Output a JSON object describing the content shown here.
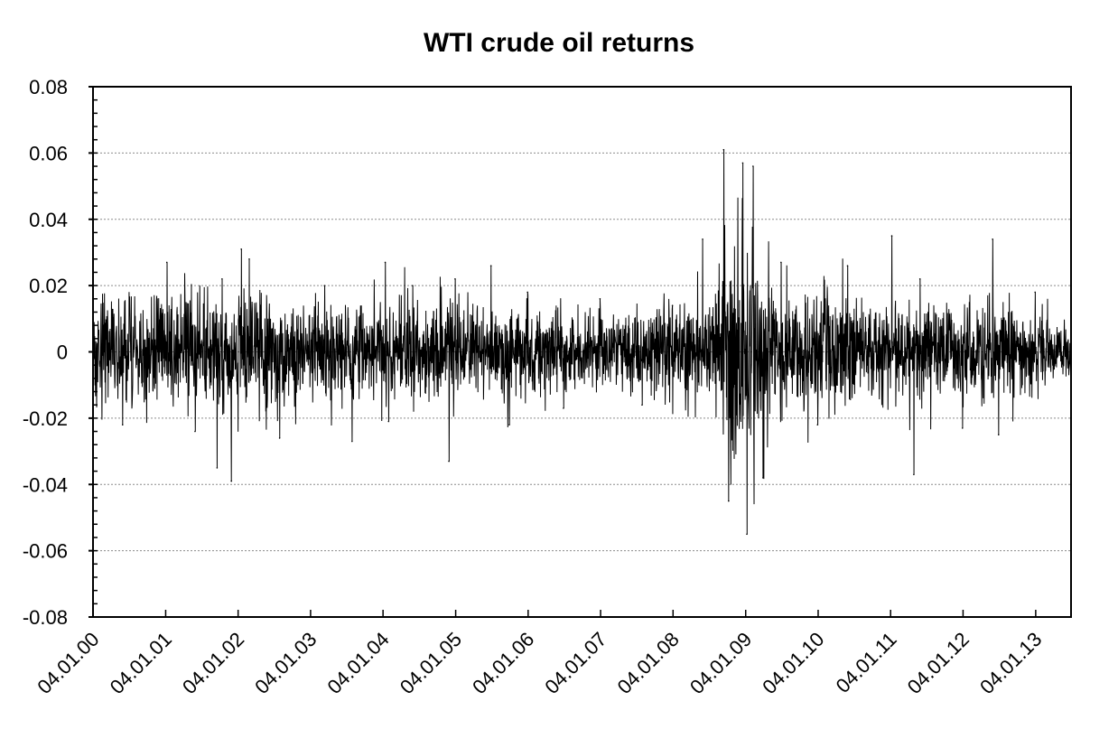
{
  "chart_data": {
    "type": "line",
    "title": "WTI crude oil returns",
    "xlabel": "",
    "ylabel": "",
    "ylim": [
      -0.08,
      0.08
    ],
    "yticks": [
      0.08,
      0.06,
      0.04,
      0.02,
      0,
      -0.02,
      -0.04,
      -0.06,
      -0.08
    ],
    "ytick_labels": [
      "0.08",
      "0.06",
      "0.04",
      "0.02",
      "0",
      "-0.02",
      "-0.04",
      "-0.06",
      "-0.08"
    ],
    "xlim": [
      "2000-01-04",
      "2013-07-01"
    ],
    "xticks": [
      "2000-01-04",
      "2001-01-04",
      "2002-01-04",
      "2003-01-04",
      "2004-01-04",
      "2005-01-04",
      "2006-01-04",
      "2007-01-04",
      "2008-01-04",
      "2009-01-04",
      "2010-01-04",
      "2011-01-04",
      "2012-01-04",
      "2013-01-04"
    ],
    "xtick_labels": [
      "04.01.00",
      "04.01.01",
      "04.01.02",
      "04.01.03",
      "04.01.04",
      "04.01.05",
      "04.01.06",
      "04.01.07",
      "04.01.08",
      "04.01.09",
      "04.01.10",
      "04.01.11",
      "04.01.12",
      "04.01.13"
    ],
    "grid": "horizontal dashed",
    "legend": "none",
    "line_color": "#000000",
    "series": [
      {
        "x": [
          "2000-01-04",
          "2000-06-01",
          "2001-01-10",
          "2001-06-01",
          "2001-09-20",
          "2001-10-15",
          "2001-12-01",
          "2002-01-20",
          "2002-03-01",
          "2002-08-01",
          "2003-03-15",
          "2003-08-01",
          "2004-01-15",
          "2004-02-01",
          "2004-06-01",
          "2004-12-01",
          "2005-01-01",
          "2005-07-01",
          "2005-10-01",
          "2006-01-01",
          "2006-07-01",
          "2007-01-01",
          "2007-08-01",
          "2008-01-01",
          "2008-06-01",
          "2008-09-15",
          "2008-10-10",
          "2008-12-20",
          "2009-01-10",
          "2009-02-10",
          "2009-04-01",
          "2009-07-01",
          "2010-01-01",
          "2010-06-01",
          "2011-01-10",
          "2011-05-01",
          "2011-06-01",
          "2012-01-01",
          "2012-06-01",
          "2012-07-01",
          "2013-01-01",
          "2013-07-01"
        ],
        "y": [
          0.016,
          -0.022,
          0.027,
          -0.024,
          -0.035,
          0.022,
          -0.039,
          0.031,
          0.028,
          -0.026,
          0.02,
          -0.027,
          0.027,
          -0.021,
          0.02,
          -0.033,
          0.022,
          0.026,
          -0.022,
          0.018,
          -0.017,
          0.016,
          -0.016,
          0.014,
          0.034,
          0.061,
          -0.045,
          0.057,
          -0.055,
          0.056,
          -0.038,
          0.027,
          -0.022,
          0.026,
          0.035,
          -0.037,
          0.022,
          -0.023,
          0.034,
          -0.025,
          0.018,
          -0.011
        ]
      }
    ],
    "volatility_regime": {
      "x": [
        "2000-01-04",
        "2002-01-04",
        "2003-06-01",
        "2005-01-04",
        "2007-01-04",
        "2008-06-01",
        "2008-10-01",
        "2009-01-04",
        "2009-06-01",
        "2011-01-04",
        "2012-06-01",
        "2013-07-01"
      ],
      "sd": [
        0.0095,
        0.011,
        0.0085,
        0.0085,
        0.0065,
        0.009,
        0.02,
        0.022,
        0.011,
        0.0085,
        0.008,
        0.005
      ]
    }
  }
}
